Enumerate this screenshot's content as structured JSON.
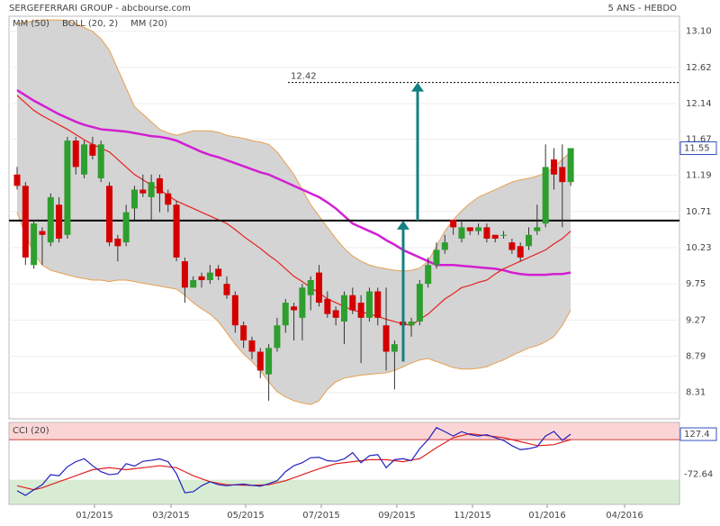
{
  "header": {
    "title": "SERGEFERRARI GROUP - abcbourse.com",
    "period": "5 ANS - HEBDO"
  },
  "chart_data": [
    {
      "type": "candlestick",
      "x_labels": [
        "01/2015",
        "03/2015",
        "05/2015",
        "07/2015",
        "09/2015",
        "11/2015",
        "01/2016",
        "04/2016"
      ],
      "open": [
        11.2,
        11.05,
        10.0,
        10.45,
        10.3,
        10.8,
        10.4,
        11.65,
        11.2,
        11.6,
        11.15,
        11.05,
        10.35,
        10.3,
        10.75,
        11.0,
        10.9,
        11.15,
        10.95,
        10.8,
        10.05,
        9.7,
        9.85,
        9.8,
        9.95,
        9.75,
        9.6,
        9.2,
        9.0,
        8.85,
        8.55,
        8.9,
        9.2,
        9.45,
        9.3,
        9.6,
        9.9,
        9.55,
        9.4,
        9.25,
        9.6,
        9.5,
        9.3,
        9.65,
        9.2,
        8.85,
        9.25,
        9.2,
        9.25,
        9.75,
        10.0,
        10.2,
        10.6,
        10.35,
        10.5,
        10.45,
        10.5,
        10.4,
        10.4,
        10.3,
        10.25,
        10.25,
        10.45,
        10.55,
        11.4,
        11.3,
        11.1
      ],
      "high": [
        11.3,
        11.1,
        10.6,
        10.5,
        10.95,
        10.9,
        11.7,
        11.7,
        11.65,
        11.7,
        11.65,
        11.1,
        10.4,
        10.8,
        11.05,
        11.2,
        11.2,
        11.2,
        11.0,
        10.85,
        10.1,
        9.85,
        9.9,
        10.0,
        10.0,
        9.85,
        9.65,
        9.25,
        9.05,
        8.9,
        8.95,
        9.3,
        9.55,
        9.5,
        9.75,
        9.85,
        10.0,
        9.65,
        9.45,
        9.65,
        9.7,
        9.6,
        9.7,
        9.7,
        9.7,
        9.0,
        9.3,
        9.3,
        9.8,
        10.1,
        10.3,
        10.4,
        10.6,
        10.6,
        10.5,
        10.55,
        10.55,
        10.4,
        10.45,
        10.35,
        10.3,
        10.5,
        10.8,
        11.6,
        11.55,
        11.6,
        11.55
      ],
      "low": [
        11.0,
        10.0,
        9.95,
        10.0,
        10.25,
        10.3,
        10.35,
        11.2,
        11.15,
        11.4,
        11.1,
        10.25,
        10.05,
        10.25,
        10.6,
        10.9,
        10.6,
        10.7,
        10.7,
        10.05,
        9.5,
        9.7,
        9.7,
        9.75,
        9.8,
        9.55,
        9.1,
        8.9,
        8.75,
        8.5,
        8.2,
        8.85,
        9.1,
        9.0,
        9.0,
        9.4,
        9.45,
        9.3,
        9.2,
        8.95,
        9.35,
        8.7,
        9.25,
        9.2,
        8.6,
        8.35,
        9.15,
        9.05,
        9.2,
        9.7,
        9.95,
        10.15,
        10.4,
        10.3,
        10.4,
        10.4,
        10.3,
        10.3,
        10.35,
        10.15,
        10.05,
        10.2,
        10.4,
        10.5,
        11.0,
        10.5,
        11.05
      ],
      "close": [
        11.05,
        10.1,
        10.55,
        10.4,
        10.9,
        10.35,
        11.65,
        11.3,
        11.6,
        11.45,
        11.6,
        10.3,
        10.25,
        10.7,
        11.0,
        10.95,
        11.1,
        10.95,
        10.8,
        10.1,
        9.7,
        9.8,
        9.8,
        9.9,
        9.85,
        9.6,
        9.2,
        9.0,
        8.85,
        8.6,
        8.9,
        9.2,
        9.5,
        9.4,
        9.7,
        9.8,
        9.5,
        9.35,
        9.3,
        9.6,
        9.4,
        9.3,
        9.65,
        9.3,
        8.85,
        8.95,
        9.2,
        9.25,
        9.75,
        10.0,
        10.2,
        10.3,
        10.5,
        10.5,
        10.45,
        10.5,
        10.35,
        10.35,
        10.4,
        10.2,
        10.1,
        10.4,
        10.5,
        11.3,
        11.2,
        11.1,
        11.55
      ],
      "up_color": "#2e9e2e",
      "down_color": "#d40000",
      "series": [
        {
          "name": "MM (50)",
          "color": "#d21fd2",
          "values": [
            12.32,
            12.25,
            12.18,
            12.12,
            12.06,
            12.0,
            11.95,
            11.9,
            11.86,
            11.83,
            11.8,
            11.79,
            11.78,
            11.77,
            11.75,
            11.73,
            11.71,
            11.7,
            11.68,
            11.65,
            11.6,
            11.55,
            11.5,
            11.46,
            11.43,
            11.39,
            11.35,
            11.31,
            11.27,
            11.23,
            11.2,
            11.15,
            11.1,
            11.05,
            11.0,
            10.95,
            10.9,
            10.83,
            10.75,
            10.65,
            10.55,
            10.5,
            10.45,
            10.4,
            10.33,
            10.27,
            10.2,
            10.15,
            10.1,
            10.05,
            10.0,
            10.0,
            10.0,
            9.99,
            9.98,
            9.97,
            9.96,
            9.95,
            9.93,
            9.9,
            9.88,
            9.87,
            9.87,
            9.87,
            9.88,
            9.88,
            9.9
          ]
        },
        {
          "name": "BOLL (20, 2)",
          "color": "#e8a050",
          "fill": "#d4d4d4",
          "upper": [
            13.2,
            13.22,
            13.24,
            13.25,
            13.25,
            13.25,
            13.24,
            13.2,
            13.15,
            13.1,
            13.0,
            12.85,
            12.6,
            12.35,
            12.1,
            12.0,
            11.9,
            11.8,
            11.75,
            11.72,
            11.75,
            11.78,
            11.78,
            11.78,
            11.76,
            11.72,
            11.7,
            11.68,
            11.65,
            11.63,
            11.6,
            11.5,
            11.35,
            11.2,
            11.0,
            10.8,
            10.65,
            10.5,
            10.35,
            10.22,
            10.12,
            10.05,
            10.0,
            9.97,
            9.95,
            9.93,
            9.92,
            9.93,
            9.96,
            10.05,
            10.25,
            10.45,
            10.6,
            10.72,
            10.82,
            10.9,
            10.95,
            11.0,
            11.05,
            11.1,
            11.13,
            11.15,
            11.18,
            11.22,
            11.3,
            11.4,
            11.5
          ],
          "lower": [
            10.7,
            10.4,
            10.15,
            10.0,
            9.93,
            9.9,
            9.87,
            9.84,
            9.82,
            9.8,
            9.8,
            9.78,
            9.8,
            9.8,
            9.78,
            9.76,
            9.74,
            9.72,
            9.7,
            9.68,
            9.6,
            9.5,
            9.42,
            9.35,
            9.25,
            9.1,
            8.95,
            8.82,
            8.72,
            8.6,
            8.45,
            8.32,
            8.25,
            8.2,
            8.17,
            8.15,
            8.2,
            8.35,
            8.45,
            8.5,
            8.52,
            8.54,
            8.55,
            8.56,
            8.57,
            8.6,
            8.65,
            8.7,
            8.74,
            8.76,
            8.72,
            8.68,
            8.64,
            8.62,
            8.62,
            8.63,
            8.65,
            8.7,
            8.74,
            8.8,
            8.85,
            8.9,
            8.93,
            8.98,
            9.05,
            9.2,
            9.4
          ]
        },
        {
          "name": "MM (20)",
          "color": "#e82020",
          "values": [
            12.25,
            12.15,
            12.05,
            11.98,
            11.92,
            11.86,
            11.8,
            11.73,
            11.66,
            11.6,
            11.55,
            11.5,
            11.4,
            11.3,
            11.2,
            11.13,
            11.06,
            11.0,
            10.92,
            10.85,
            10.8,
            10.75,
            10.7,
            10.65,
            10.6,
            10.55,
            10.47,
            10.38,
            10.3,
            10.22,
            10.13,
            10.05,
            9.95,
            9.85,
            9.78,
            9.7,
            9.63,
            9.55,
            9.5,
            9.45,
            9.4,
            9.38,
            9.35,
            9.32,
            9.28,
            9.25,
            9.22,
            9.2,
            9.28,
            9.35,
            9.45,
            9.55,
            9.62,
            9.7,
            9.73,
            9.77,
            9.8,
            9.88,
            9.95,
            10.0,
            10.05,
            10.1,
            10.15,
            10.2,
            10.28,
            10.35,
            10.45
          ]
        }
      ],
      "support_line": 10.59,
      "target_line": 12.42,
      "arrows": [
        {
          "from": 8.72,
          "to": 10.59,
          "color": "#158080"
        },
        {
          "from": 10.59,
          "to": 12.42,
          "color": "#158080"
        }
      ],
      "ylim": [
        7.96,
        13.3
      ],
      "yticks": [
        {
          "value": 13.1,
          "label": "13.10"
        },
        12.62,
        12.14,
        11.67,
        11.19,
        10.71,
        10.23,
        9.75,
        9.27,
        8.79,
        8.31
      ]
    },
    {
      "type": "line",
      "title": "CCI (20)",
      "series": [
        {
          "name": "CCI",
          "color": "#2020c0",
          "values": [
            -155,
            -178,
            -150,
            -125,
            -75,
            -80,
            -35,
            -10,
            5,
            -30,
            -60,
            -75,
            -70,
            -20,
            -32,
            -8,
            -3,
            4,
            -10,
            -70,
            -165,
            -160,
            -130,
            -110,
            -125,
            -130,
            -125,
            -122,
            -128,
            -132,
            -120,
            -105,
            -60,
            -30,
            -15,
            10,
            12,
            -5,
            -8,
            4,
            35,
            -15,
            20,
            25,
            -40,
            0,
            5,
            -5,
            55,
            100,
            160,
            140,
            118,
            140,
            125,
            118,
            125,
            110,
            96,
            70,
            50,
            55,
            65,
            118,
            141,
            96,
            127.4
          ]
        },
        {
          "name": "signal",
          "color": "#e02020",
          "values": [
            -130,
            -140,
            -150,
            -140,
            -125,
            -110,
            -95,
            -80,
            -65,
            -50,
            -45,
            -40,
            -45,
            -50,
            -45,
            -40,
            -35,
            -30,
            -35,
            -40,
            -60,
            -80,
            -95,
            -110,
            -118,
            -125,
            -126,
            -127,
            -128,
            -126,
            -125,
            -115,
            -105,
            -90,
            -75,
            -60,
            -45,
            -32,
            -20,
            -15,
            -10,
            -5,
            0,
            0,
            0,
            -5,
            -10,
            -2,
            5,
            32,
            60,
            85,
            110,
            120,
            130,
            125,
            120,
            115,
            110,
            100,
            90,
            80,
            70,
            72,
            75,
            88,
            100
          ]
        }
      ],
      "bands": [
        -100,
        100
      ],
      "ylim": [
        -223,
        186
      ],
      "yticks": [
        -72.64
      ]
    }
  ]
}
